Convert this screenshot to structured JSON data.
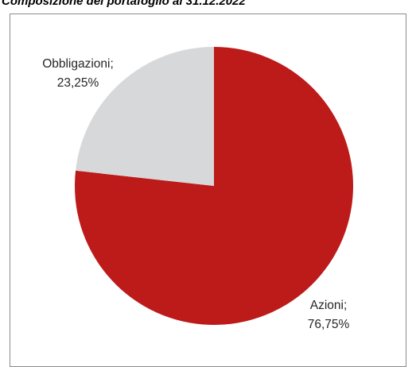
{
  "chart_data": {
    "type": "pie",
    "title": "Composizione del portafoglio al 31.12.2022",
    "slices": [
      {
        "name": "Azioni",
        "value": 76.75,
        "label_name": "Azioni;",
        "label_value": "76,75%",
        "color": "#bd1a1a"
      },
      {
        "name": "Obbligazioni",
        "value": 23.25,
        "label_name": "Obbligazioni;",
        "label_value": "23,25%",
        "color": "#d6d8da"
      }
    ],
    "start_angle_deg": 0,
    "direction": "clockwise",
    "legend": "none"
  }
}
